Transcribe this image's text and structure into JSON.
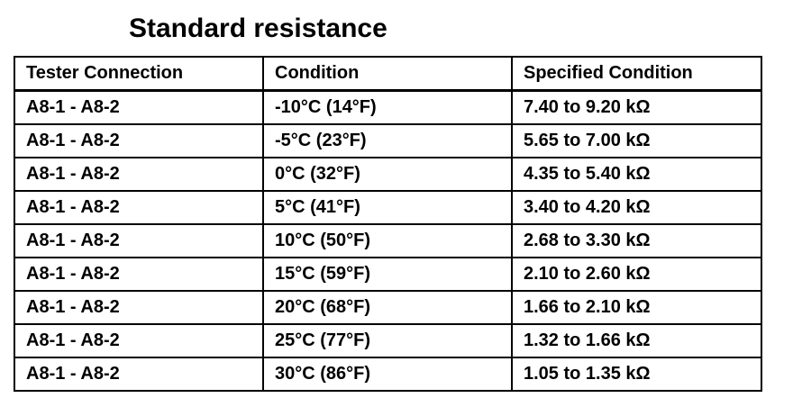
{
  "title": "Standard resistance",
  "table": {
    "headers": [
      "Tester Connection",
      "Condition",
      "Specified Condition"
    ],
    "rows": [
      [
        "A8-1 - A8-2",
        "-10°C (14°F)",
        "7.40 to 9.20 kΩ"
      ],
      [
        "A8-1 - A8-2",
        "-5°C (23°F)",
        "5.65 to 7.00 kΩ"
      ],
      [
        "A8-1 - A8-2",
        "0°C (32°F)",
        "4.35 to 5.40 kΩ"
      ],
      [
        "A8-1 - A8-2",
        "5°C (41°F)",
        "3.40 to 4.20 kΩ"
      ],
      [
        "A8-1 - A8-2",
        "10°C (50°F)",
        "2.68 to 3.30 kΩ"
      ],
      [
        "A8-1 - A8-2",
        "15°C (59°F)",
        "2.10 to 2.60 kΩ"
      ],
      [
        "A8-1 - A8-2",
        "20°C (68°F)",
        "1.66 to 2.10 kΩ"
      ],
      [
        "A8-1 - A8-2",
        "25°C (77°F)",
        "1.32 to 1.66 kΩ"
      ],
      [
        "A8-1 - A8-2",
        "30°C (86°F)",
        "1.05 to 1.35 kΩ"
      ]
    ]
  }
}
